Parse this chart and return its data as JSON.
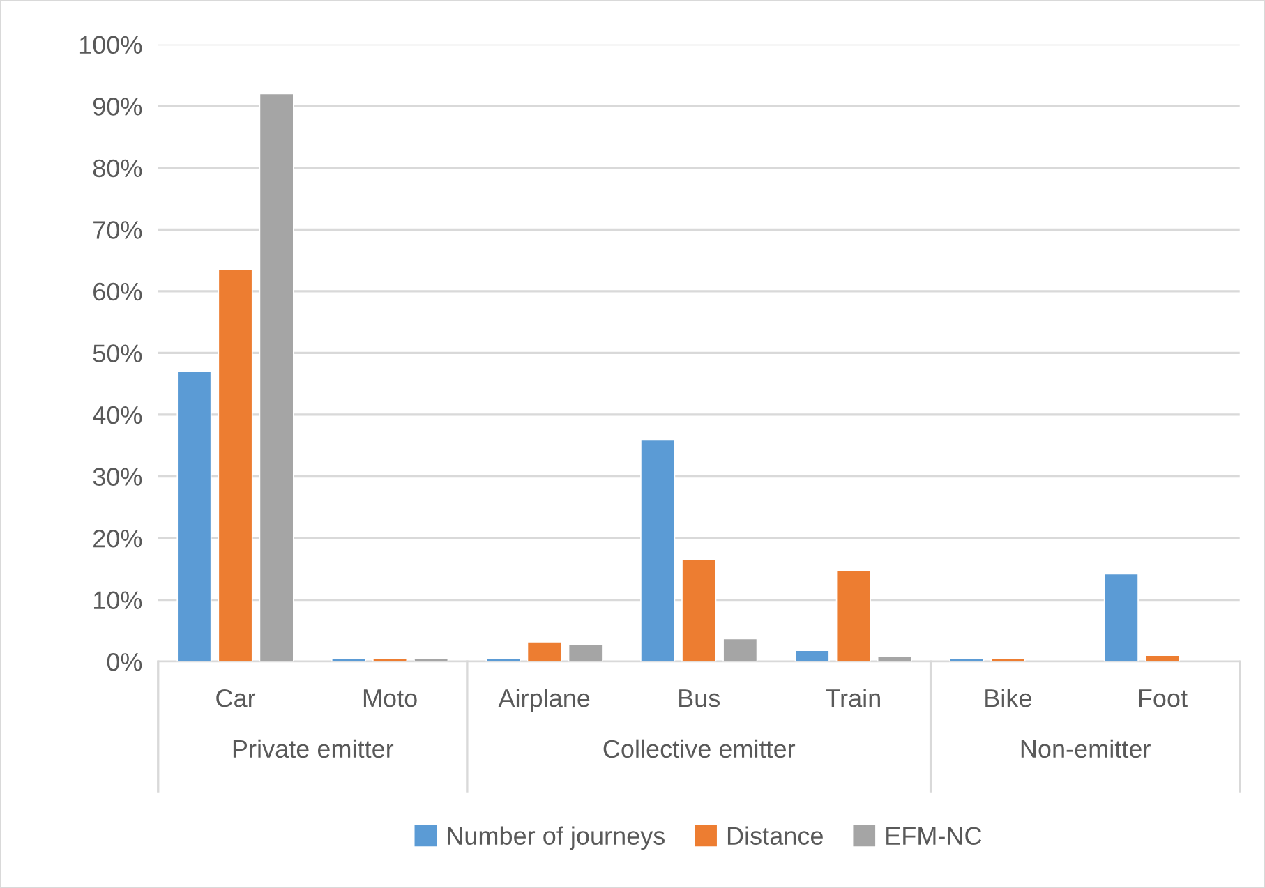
{
  "chart_data": {
    "type": "bar",
    "categories": [
      "Car",
      "Moto",
      "Airplane",
      "Bus",
      "Train",
      "Bike",
      "Foot"
    ],
    "series": [
      {
        "name": "Number of journeys",
        "color": "#5b9bd5",
        "values": [
          47,
          0.5,
          0.5,
          36,
          1.8,
          0.5,
          14.2
        ]
      },
      {
        "name": "Distance",
        "color": "#ed7d31",
        "values": [
          63.5,
          0.5,
          3.2,
          16.6,
          14.8,
          0.5,
          1.0
        ]
      },
      {
        "name": "EFM-NC",
        "color": "#a5a5a5",
        "values": [
          92,
          0.5,
          2.8,
          3.7,
          0.9,
          null,
          null
        ]
      }
    ],
    "annotations": [
      "Private emitter",
      "Collective emitter",
      "Non-emitter"
    ],
    "ylim": [
      0,
      100
    ],
    "yticks": [
      {
        "value": 0,
        "label": "0%"
      },
      {
        "value": 10,
        "label": "10%"
      },
      {
        "value": 20,
        "label": "20%"
      },
      {
        "value": 30,
        "label": "30%"
      },
      {
        "value": 40,
        "label": "40%"
      },
      {
        "value": 50,
        "label": "50%"
      },
      {
        "value": 60,
        "label": "60%"
      },
      {
        "value": 70,
        "label": "70%"
      },
      {
        "value": 80,
        "label": "80%"
      },
      {
        "value": 90,
        "label": "90%"
      },
      {
        "value": 100,
        "label": "100%"
      }
    ],
    "grid": "y",
    "legend": "bottom"
  }
}
